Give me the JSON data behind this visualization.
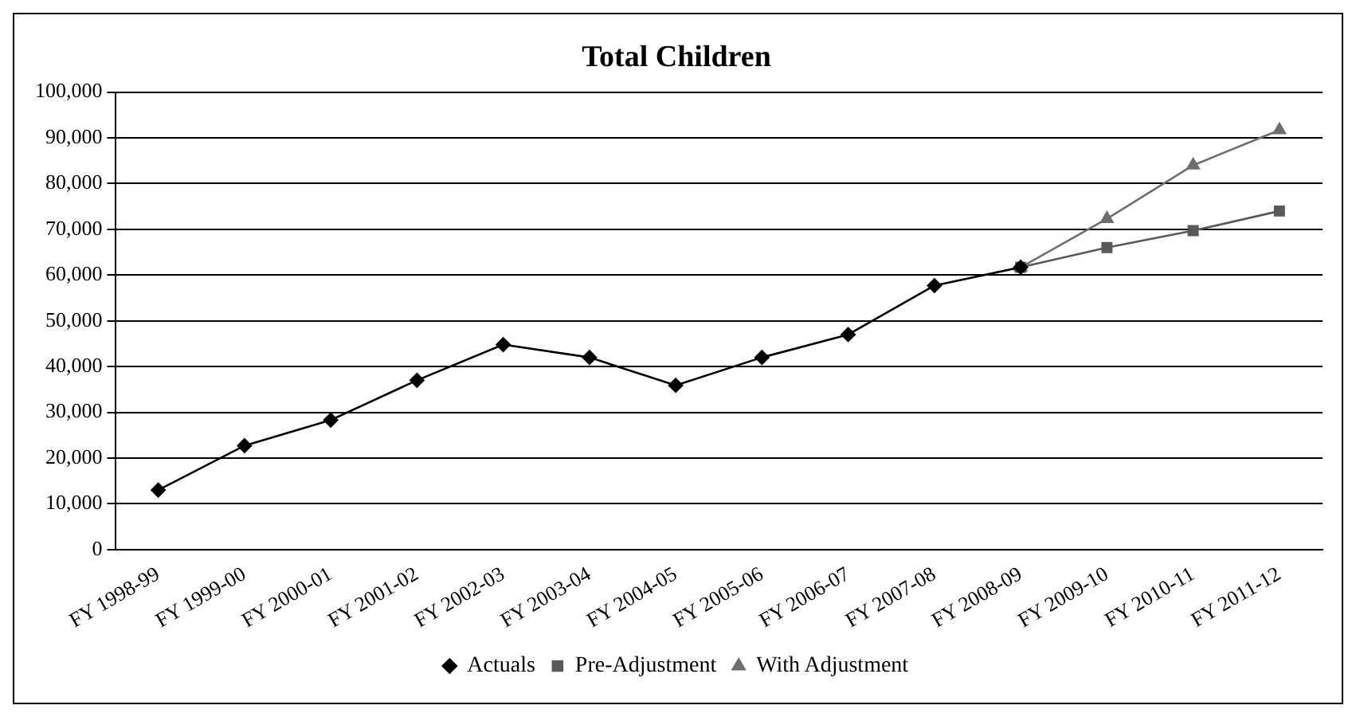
{
  "chart_data": {
    "type": "line",
    "title": "Total Children",
    "categories": [
      "FY 1998-99",
      "FY 1999-00",
      "FY 2000-01",
      "FY 2001-02",
      "FY 2002-03",
      "FY 2003-04",
      "FY 2004-05",
      "FY 2005-06",
      "FY 2006-07",
      "FY 2007-08",
      "FY 2008-09",
      "FY 2009-10",
      "FY 2010-11",
      "FY 2011-12"
    ],
    "series": [
      {
        "name": "Actuals",
        "color": "#000000",
        "marker": "diamond",
        "values": [
          13000,
          22700,
          28300,
          37000,
          44800,
          42000,
          35900,
          42000,
          47000,
          57700,
          61700,
          null,
          null,
          null
        ]
      },
      {
        "name": "Pre-Adjustment",
        "color": "#595959",
        "marker": "square",
        "values": [
          null,
          null,
          null,
          null,
          null,
          null,
          null,
          null,
          null,
          null,
          61700,
          66000,
          69700,
          74000
        ]
      },
      {
        "name": "With Adjustment",
        "color": "#6e6e6e",
        "marker": "triangle",
        "values": [
          null,
          null,
          null,
          null,
          null,
          null,
          null,
          null,
          null,
          null,
          61700,
          72300,
          84000,
          91700
        ]
      }
    ],
    "ylim": [
      0,
      100000
    ],
    "yticks": [
      0,
      {
        "value": 10000,
        "label": "10,000"
      },
      {
        "value": 20000,
        "label": "20,000"
      },
      {
        "value": 30000,
        "label": "30,000"
      },
      {
        "value": 40000,
        "label": "40,000"
      },
      {
        "value": 50000,
        "label": "50,000"
      },
      {
        "value": 60000,
        "label": "60,000"
      },
      {
        "value": 70000,
        "label": "70,000"
      },
      {
        "value": 80000,
        "label": "80,000"
      },
      {
        "value": 90000,
        "label": "90,000"
      },
      {
        "value": 100000,
        "label": "100,000"
      }
    ],
    "grid": "y",
    "legend": "bottom"
  }
}
